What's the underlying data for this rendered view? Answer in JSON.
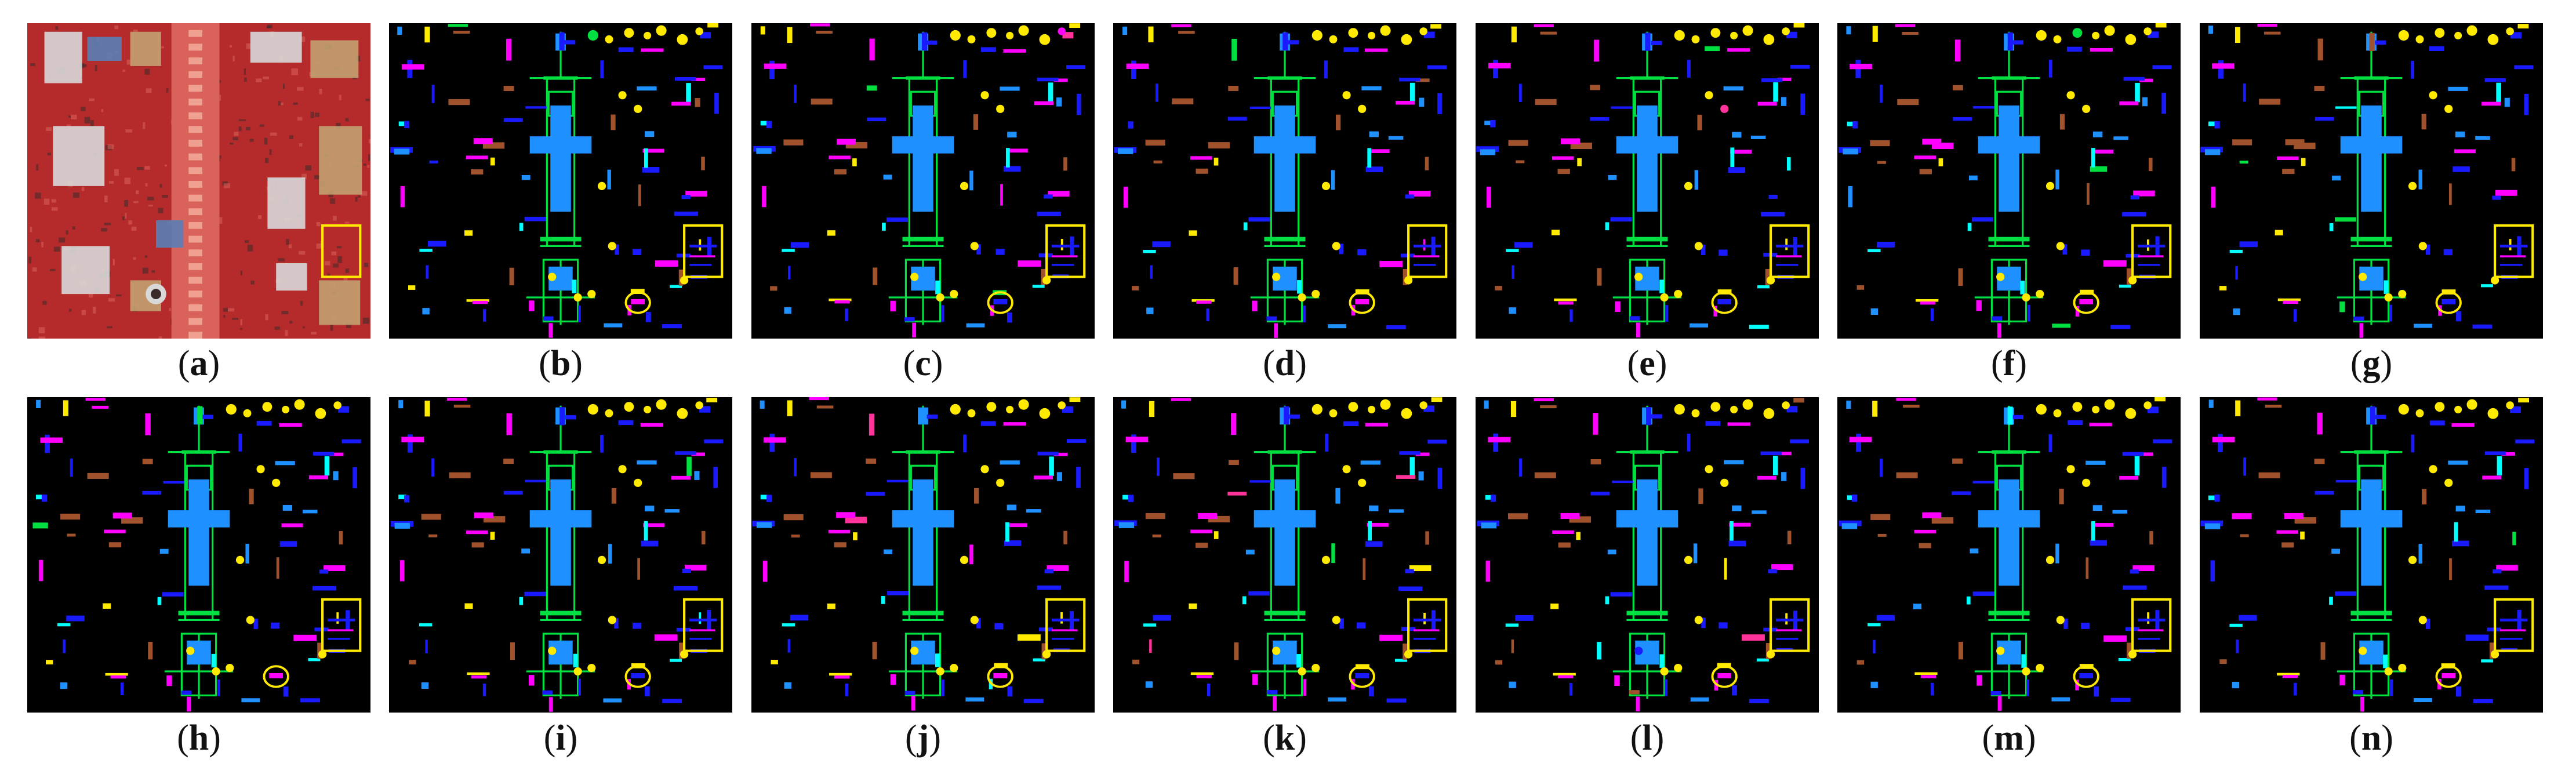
{
  "figure": {
    "panels": [
      {
        "label": "a",
        "kind": "photo"
      },
      {
        "label": "b",
        "kind": "map"
      },
      {
        "label": "c",
        "kind": "map"
      },
      {
        "label": "d",
        "kind": "map"
      },
      {
        "label": "e",
        "kind": "map"
      },
      {
        "label": "f",
        "kind": "map"
      },
      {
        "label": "g",
        "kind": "map"
      },
      {
        "label": "h",
        "kind": "map"
      },
      {
        "label": "i",
        "kind": "map"
      },
      {
        "label": "j",
        "kind": "map"
      },
      {
        "label": "k",
        "kind": "map"
      },
      {
        "label": "l",
        "kind": "map"
      },
      {
        "label": "m",
        "kind": "map"
      },
      {
        "label": "n",
        "kind": "map"
      }
    ],
    "palette": {
      "background": "#000000",
      "highlight": "#ffea00",
      "classes": [
        "#1a1aff",
        "#1e90ff",
        "#ff00ff",
        "#ffea00",
        "#00e040",
        "#a0522d",
        "#00ffff",
        "#ff3399"
      ]
    },
    "photo_palette": {
      "base": "#b52b2b",
      "road": "#d9625a",
      "roof_light": "#d8d8d8",
      "roof_blue": "#5a7fb5",
      "roof_tan": "#c2a070",
      "shadow": "#3a2a2a"
    }
  }
}
